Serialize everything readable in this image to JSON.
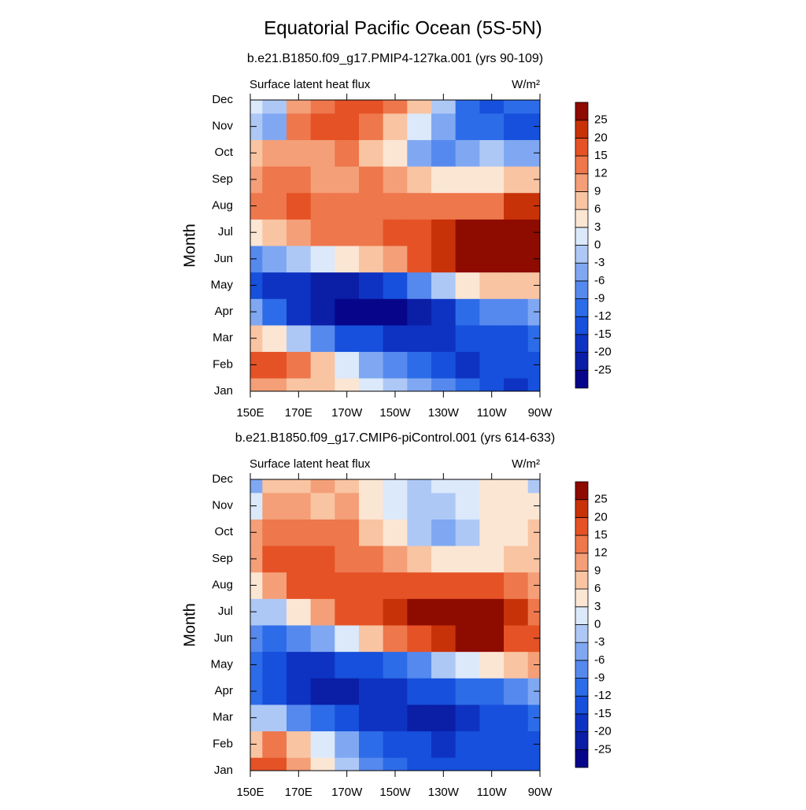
{
  "title": "Equatorial Pacific Ocean (5S-5N)",
  "chart_data": [
    {
      "type": "contour",
      "subtitle": "b.e21.B1850.f09_g17.PMIP4-127ka.001 (yrs 90-109)",
      "left_string": "Surface latent heat flux",
      "right_string": "W/m²",
      "y_label": "Month",
      "categories": [
        "Jan",
        "Feb",
        "Mar",
        "Apr",
        "May",
        "Jun",
        "Jul",
        "Aug",
        "Sep",
        "Oct",
        "Nov",
        "Dec"
      ],
      "x": [
        150,
        160,
        170,
        180,
        190,
        200,
        210,
        220,
        230,
        240,
        250,
        260,
        270
      ],
      "xlim": [
        150,
        270
      ],
      "xticks": [
        {
          "value": 150,
          "label": "150E"
        },
        {
          "value": 170,
          "label": "170E"
        },
        {
          "value": 190,
          "label": "170W"
        },
        {
          "value": 210,
          "label": "150W"
        },
        {
          "value": 230,
          "label": "130W"
        },
        {
          "value": 250,
          "label": "110W"
        },
        {
          "value": 270,
          "label": "90W"
        }
      ],
      "levels": [
        -25,
        -20,
        -15,
        -12,
        -9,
        -6,
        -3,
        0,
        3,
        6,
        9,
        12,
        15,
        20,
        25
      ],
      "colors": [
        "#07068a",
        "#0a1ea6",
        "#0e33c2",
        "#1650dc",
        "#2d6ce8",
        "#5689ee",
        "#80a8f2",
        "#aec8f6",
        "#dbe9fb",
        "#fbe6d4",
        "#f9c4a2",
        "#f49f78",
        "#ee774c",
        "#e55226",
        "#c83208",
        "#8e0b00"
      ],
      "z": [
        [
          10,
          10,
          8,
          6,
          3,
          0,
          -3,
          -6,
          -9,
          -12,
          -15,
          -20,
          -15
        ],
        [
          15,
          15,
          12,
          6,
          0,
          -6,
          -9,
          -12,
          -15,
          -18,
          -15,
          -15,
          -15
        ],
        [
          8,
          3,
          -3,
          -9,
          -15,
          -15,
          -18,
          -18,
          -18,
          -15,
          -15,
          -15,
          -12
        ],
        [
          -6,
          -12,
          -18,
          -22,
          -27,
          -27,
          -26,
          -22,
          -18,
          -12,
          -9,
          -9,
          -6
        ],
        [
          -15,
          -18,
          -20,
          -25,
          -22,
          -18,
          -15,
          -9,
          -3,
          3,
          6,
          6,
          6
        ],
        [
          -9,
          -6,
          -3,
          0,
          3,
          6,
          9,
          15,
          20,
          26,
          27,
          26,
          25
        ],
        [
          3,
          6,
          9,
          12,
          12,
          12,
          15,
          18,
          22,
          26,
          25,
          27,
          27
        ],
        [
          12,
          14,
          15,
          12,
          12,
          12,
          13,
          12,
          12,
          12,
          14,
          20,
          22
        ],
        [
          9,
          12,
          12,
          9,
          9,
          12,
          9,
          6,
          3,
          3,
          3,
          6,
          6
        ],
        [
          6,
          10,
          9,
          9,
          12,
          6,
          3,
          -6,
          -9,
          -6,
          -3,
          -6,
          -6
        ],
        [
          -3,
          -6,
          12,
          15,
          15,
          12,
          6,
          0,
          -6,
          -12,
          -12,
          -15,
          -15
        ],
        [
          0,
          -3,
          9,
          12,
          15,
          15,
          12,
          6,
          -3,
          -12,
          -15,
          -12,
          -12
        ]
      ]
    },
    {
      "type": "contour",
      "subtitle": "b.e21.B1850.f09_g17.CMIP6-piControl.001 (yrs 614-633)",
      "left_string": "Surface latent heat flux",
      "right_string": "W/m²",
      "y_label": "Month",
      "categories": [
        "Jan",
        "Feb",
        "Mar",
        "Apr",
        "May",
        "Jun",
        "Jul",
        "Aug",
        "Sep",
        "Oct",
        "Nov",
        "Dec"
      ],
      "x": [
        150,
        160,
        170,
        180,
        190,
        200,
        210,
        220,
        230,
        240,
        250,
        260,
        270
      ],
      "xlim": [
        150,
        270
      ],
      "xticks": [
        {
          "value": 150,
          "label": "150E"
        },
        {
          "value": 170,
          "label": "170E"
        },
        {
          "value": 190,
          "label": "170W"
        },
        {
          "value": 210,
          "label": "150W"
        },
        {
          "value": 230,
          "label": "130W"
        },
        {
          "value": 250,
          "label": "110W"
        },
        {
          "value": 270,
          "label": "90W"
        }
      ],
      "levels": [
        -25,
        -20,
        -15,
        -12,
        -9,
        -6,
        -3,
        0,
        3,
        6,
        9,
        12,
        15,
        20,
        25
      ],
      "colors": [
        "#07068a",
        "#0a1ea6",
        "#0e33c2",
        "#1650dc",
        "#2d6ce8",
        "#5689ee",
        "#80a8f2",
        "#aec8f6",
        "#dbe9fb",
        "#fbe6d4",
        "#f9c4a2",
        "#f49f78",
        "#ee774c",
        "#e55226",
        "#c83208",
        "#8e0b00"
      ],
      "z": [
        [
          15,
          15,
          9,
          3,
          -3,
          -9,
          -12,
          -15,
          -15,
          -15,
          -15,
          -15,
          -15
        ],
        [
          6,
          12,
          6,
          0,
          -6,
          -12,
          -15,
          -15,
          -18,
          -15,
          -15,
          -15,
          -15
        ],
        [
          -3,
          -3,
          -9,
          -12,
          -15,
          -18,
          -20,
          -25,
          -22,
          -20,
          -15,
          -15,
          -12
        ],
        [
          -12,
          -15,
          -18,
          -22,
          -25,
          -20,
          -18,
          -15,
          -15,
          -12,
          -12,
          -9,
          -6
        ],
        [
          -12,
          -15,
          -18,
          -18,
          -15,
          -15,
          -12,
          -9,
          -3,
          0,
          3,
          6,
          9
        ],
        [
          -9,
          -12,
          -9,
          -6,
          0,
          6,
          12,
          15,
          22,
          25,
          25,
          18,
          15
        ],
        [
          -3,
          -3,
          3,
          9,
          15,
          18,
          20,
          25,
          26,
          26,
          25,
          20,
          12
        ],
        [
          3,
          9,
          15,
          18,
          18,
          18,
          18,
          18,
          18,
          15,
          15,
          12,
          9
        ],
        [
          9,
          15,
          15,
          15,
          12,
          12,
          9,
          6,
          3,
          3,
          3,
          6,
          6
        ],
        [
          9,
          12,
          12,
          12,
          12,
          6,
          3,
          -3,
          -6,
          -3,
          3,
          3,
          6
        ],
        [
          0,
          9,
          9,
          6,
          9,
          3,
          0,
          -3,
          -3,
          0,
          3,
          3,
          3
        ],
        [
          -6,
          6,
          6,
          9,
          6,
          3,
          0,
          -3,
          0,
          0,
          3,
          3,
          -3
        ]
      ]
    }
  ]
}
